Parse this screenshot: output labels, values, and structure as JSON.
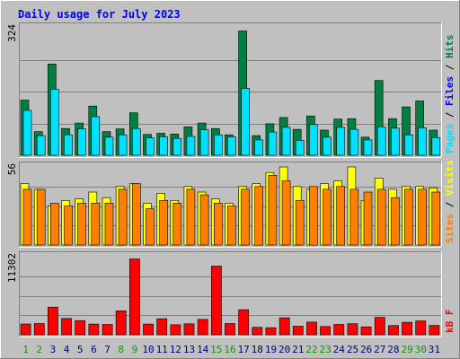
{
  "chart_data": {
    "type": "bar",
    "title": "Daily usage for July 2023",
    "x": {
      "categories": [
        "1",
        "2",
        "3",
        "4",
        "5",
        "6",
        "7",
        "8",
        "9",
        "10",
        "11",
        "12",
        "13",
        "14",
        "15",
        "16",
        "17",
        "18",
        "19",
        "20",
        "21",
        "22",
        "23",
        "24",
        "25",
        "26",
        "27",
        "28",
        "29",
        "30",
        "31"
      ],
      "weekend": [
        1,
        2,
        8,
        9,
        15,
        16,
        22,
        23,
        29,
        30
      ]
    },
    "panels": [
      {
        "max_label": "324",
        "ymax": 324,
        "series": [
          {
            "name": "Hits",
            "color": "#008040",
            "values": [
              140,
              60,
              232,
              68,
              82,
              125,
              60,
              67,
              108,
              53,
              56,
              54,
              72,
              82,
              68,
              52,
              316,
              50,
              80,
              96,
              66,
              100,
              64,
              92,
              93,
              46,
              190,
              93,
              123,
              138,
              64
            ]
          },
          {
            "name": "Pages",
            "color": "#00e0ff",
            "values": [
              114,
              50,
              168,
              52,
              67,
              98,
              46,
              52,
              68,
              44,
              47,
              43,
              48,
              65,
              52,
              47,
              170,
              39,
              59,
              71,
              38,
              78,
              46,
              71,
              66,
              39,
              72,
              69,
              52,
              70,
              45
            ]
          },
          {
            "name": "Files",
            "color": "#0000ff",
            "values": []
          }
        ],
        "legend": [
          "Pages",
          "Files",
          "Hits"
        ]
      },
      {
        "max_label": "56",
        "ymax": 56,
        "series": [
          {
            "name": "Visits",
            "color": "#ffff00",
            "values": [
              44,
              40,
              28,
              32,
              33,
              38,
              34,
              42,
              44,
              30,
              37,
              32,
              42,
              38,
              33,
              30,
              42,
              44,
              52,
              56,
              42,
              40,
              44,
              46,
              56,
              32,
              48,
              40,
              42,
              42,
              41
            ]
          },
          {
            "name": "Sites",
            "color": "#ff8000",
            "values": [
              40,
              40,
              30,
              28,
              30,
              30,
              30,
              40,
              44,
              26,
              32,
              30,
              40,
              36,
              30,
              28,
              40,
              42,
              50,
              46,
              32,
              42,
              40,
              42,
              40,
              38,
              40,
              34,
              40,
              40,
              38
            ]
          }
        ],
        "legend": [
          "Sites",
          "Visits"
        ]
      },
      {
        "max_label": "11302",
        "ymax": 11302,
        "series": [
          {
            "name": "kB F",
            "color": "#ff0000",
            "values": [
              1560,
              1630,
              4000,
              2360,
              2050,
              1540,
              1500,
              3470,
              10980,
              1540,
              2330,
              1440,
              1580,
              2220,
              9940,
              1620,
              3630,
              1080,
              1030,
              2460,
              1230,
              1830,
              1200,
              1490,
              1600,
              1140,
              2520,
              1340,
              1810,
              2000,
              1350
            ]
          }
        ],
        "legend": [
          "kB F"
        ]
      }
    ],
    "grid": true
  },
  "colors": {
    "background": "#c0c0c0",
    "frame_light": "#ffffff",
    "frame_dark": "#808080",
    "gridline": "#808080",
    "title": "#0000ff",
    "weekday_label": "#000080",
    "weekend_label": "#00a000"
  }
}
